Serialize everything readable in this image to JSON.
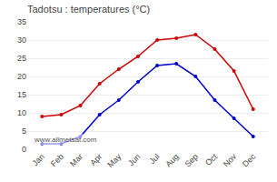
{
  "chart_data": {
    "type": "line",
    "title": "Tadotsu : temperatures (°C)",
    "categories": [
      "Jan",
      "Feb",
      "Mar",
      "Apr",
      "May",
      "Jun",
      "Jul",
      "Aug",
      "Sep",
      "Oct",
      "Nov",
      "Dec"
    ],
    "series": [
      {
        "color": "#cc0000",
        "values": [
          9,
          9.5,
          12,
          18,
          22,
          25.5,
          30,
          30.5,
          31.5,
          27.5,
          21.5,
          11
        ]
      },
      {
        "color": "#0000cc",
        "values": [
          1.5,
          1.5,
          3.5,
          9.5,
          13.5,
          18.5,
          23,
          23.5,
          20,
          13.5,
          8.5,
          3.5
        ]
      }
    ],
    "ylim": [
      0,
      35
    ],
    "yticks": [
      0,
      5,
      10,
      15,
      20,
      25,
      30,
      35
    ],
    "grid": true,
    "marker": "circle",
    "line_style": "solid",
    "annotation": "www.allmetsat.com"
  }
}
